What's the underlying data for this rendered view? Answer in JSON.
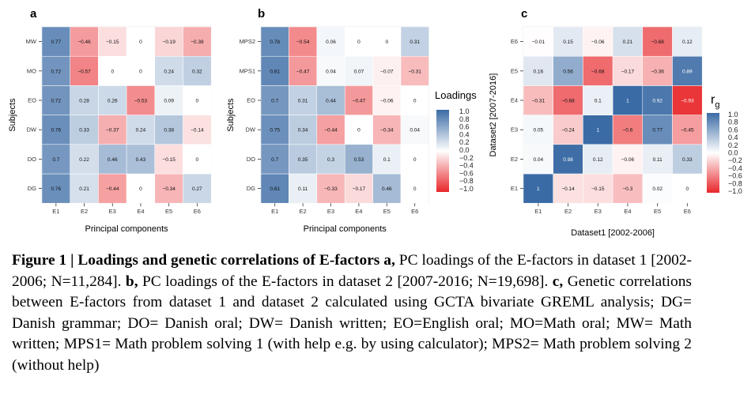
{
  "caption": {
    "head": "Figure 1 | Loadings and genetic correlations of E-factors a,",
    "t1": " PC loadings of the E-factors in dataset 1 [2002-2006; N=11,284]. ",
    "b_label": "b,",
    "t2": " PC loadings of the E-factors in dataset 2 [2007-2016; N=19,698]. ",
    "c_label": "c,",
    "t3": " Genetic correlations between E-factors from dataset 1 and dataset 2 calculated using GCTA bivariate GREML analysis; DG= Danish grammar; DO= Danish oral; DW= Danish written; EO=English oral; MO=Math oral; MW= Math written; MPS1= Math problem solving 1 (with help e.g.  by using calculator); MPS2= Math problem solving 2 (without help)"
  },
  "colors": {
    "negative": "#e8262a",
    "neutral": "#ffffff",
    "positive": "#3b6ba5"
  },
  "chart_data": [
    {
      "type": "heatmap",
      "panel": "a",
      "xlabel": "Principal components",
      "ylabel": "Subjects",
      "x": [
        "E1",
        "E2",
        "E3",
        "E4",
        "E5",
        "E6"
      ],
      "y": [
        "DG",
        "DO",
        "DW",
        "EO",
        "MO",
        "MW"
      ],
      "values": [
        [
          0.76,
          0.21,
          -0.44,
          0,
          -0.34,
          0.27
        ],
        [
          0.7,
          0.22,
          0.46,
          0.43,
          -0.15,
          0
        ],
        [
          0.76,
          0.33,
          -0.37,
          0.24,
          0.38,
          -0.14
        ],
        [
          0.72,
          0.28,
          0.26,
          -0.53,
          0.09,
          0
        ],
        [
          0.72,
          -0.57,
          0,
          0,
          0.24,
          0.32
        ],
        [
          0.77,
          -0.46,
          -0.15,
          0,
          -0.19,
          -0.38
        ]
      ],
      "range": [
        -1,
        1
      ]
    },
    {
      "type": "heatmap",
      "panel": "b",
      "xlabel": "Principal components",
      "ylabel": "Subjects",
      "x": [
        "E1",
        "E2",
        "E3",
        "E4",
        "E5",
        "E6"
      ],
      "y": [
        "DG",
        "DO",
        "DW",
        "EO",
        "MPS1",
        "MPS2"
      ],
      "values": [
        [
          0.81,
          0.11,
          -0.33,
          -0.17,
          0.46,
          0
        ],
        [
          0.7,
          0.35,
          0.3,
          0.53,
          0.1,
          0
        ],
        [
          0.75,
          0.34,
          -0.44,
          0,
          -0.34,
          0.04
        ],
        [
          0.7,
          0.31,
          0.44,
          -0.47,
          -0.06,
          0
        ],
        [
          0.81,
          -0.47,
          0.04,
          0.07,
          -0.07,
          -0.31
        ],
        [
          0.78,
          -0.54,
          0.06,
          0,
          0,
          0.31
        ]
      ],
      "range": [
        -1,
        1
      ],
      "legend": {
        "title": "Loadings",
        "ticks": [
          "1.0",
          "0.8",
          "0.6",
          "0.4",
          "0.2",
          "0.0",
          "−0.2",
          "−0.4",
          "−0.6",
          "−0.8",
          "−1.0"
        ]
      }
    },
    {
      "type": "heatmap",
      "panel": "c",
      "xlabel": "Dataset1 [2002-2006]",
      "ylabel": "Dataset2 [2007-2016]",
      "x": [
        "E1",
        "E2",
        "E3",
        "E4",
        "E5",
        "E6"
      ],
      "y": [
        "E1",
        "E2",
        "E3",
        "E4",
        "E5",
        "E6"
      ],
      "values": [
        [
          1,
          -0.14,
          -0.15,
          -0.3,
          0.02,
          0
        ],
        [
          0.04,
          0.98,
          0.12,
          -0.06,
          0.11,
          0.33
        ],
        [
          0.05,
          -0.24,
          1,
          -0.6,
          0.77,
          -0.45
        ],
        [
          -0.31,
          -0.68,
          0.1,
          1,
          0.92,
          -0.93
        ],
        [
          0.16,
          0.56,
          -0.68,
          -0.17,
          -0.36,
          0.89
        ],
        [
          -0.01,
          0.15,
          -0.06,
          0.21,
          -0.68,
          0.12
        ]
      ],
      "range": [
        -1,
        1
      ],
      "legend": {
        "title": "r",
        "title_sub": "g",
        "ticks": [
          "1.0",
          "0.8",
          "0.6",
          "0.4",
          "0.2",
          "0.0",
          "−0.2",
          "−0.4",
          "−0.6",
          "−0.8",
          "−1.0"
        ]
      }
    }
  ]
}
